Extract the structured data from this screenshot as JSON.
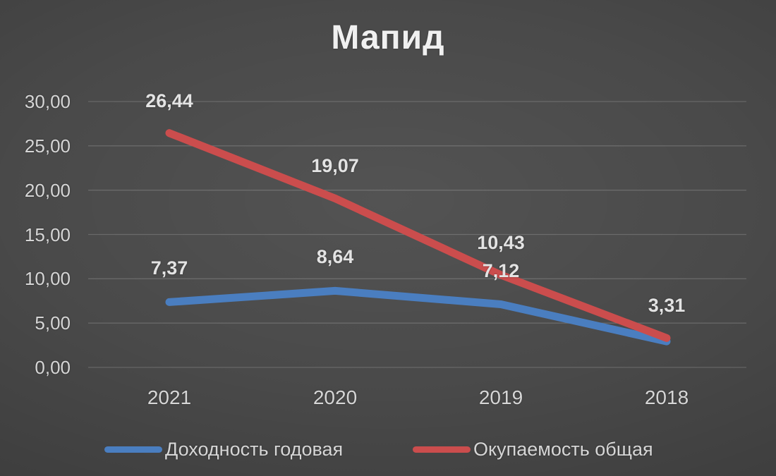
{
  "chart_data": {
    "type": "line",
    "title": "Мапид",
    "categories": [
      "2021",
      "2020",
      "2019",
      "2018"
    ],
    "series": [
      {
        "name": "Доходность годовая",
        "color": "#4a7ec0",
        "values": [
          7.37,
          8.64,
          7.12,
          2.94
        ],
        "data_labels": [
          "7,37",
          "8,64",
          "7,12",
          ""
        ]
      },
      {
        "name": "Окупаемость общая",
        "color": "#cb4d4d",
        "values": [
          26.44,
          19.07,
          10.43,
          3.31
        ],
        "data_labels": [
          "26,44",
          "19,07",
          "10,43",
          "3,31"
        ]
      }
    ],
    "y_axis": {
      "range": [
        0,
        30
      ],
      "ticks": [
        {
          "value": 30,
          "label": "30,00"
        },
        {
          "value": 25,
          "label": "25,00"
        },
        {
          "value": 20,
          "label": "20,00"
        },
        {
          "value": 15,
          "label": "15,00"
        },
        {
          "value": 10,
          "label": "10,00"
        },
        {
          "value": 5,
          "label": "5,00"
        },
        {
          "value": 0,
          "label": "0,00"
        }
      ]
    },
    "grid": true,
    "legend_position": "bottom",
    "colors": {
      "background": "#4a4a4a",
      "grid_line": "rgba(255,255,255,0.17)",
      "text": "#d6d6d6",
      "title_text": "#f0f0f0"
    }
  }
}
